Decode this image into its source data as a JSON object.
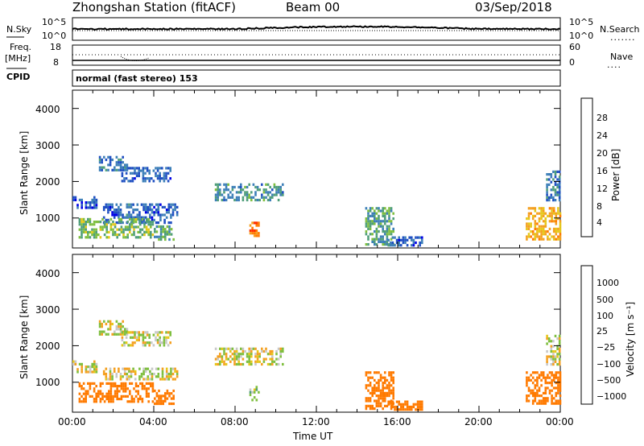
{
  "header": {
    "station": "Zhongshan Station (fitACF)",
    "beam": "Beam 00",
    "date": "03/Sep/2018"
  },
  "panels": {
    "nsky_label": "N.Sky",
    "nsky_ticks": [
      "10^5",
      "10^0"
    ],
    "nsearch_label": "N.Search",
    "nsearch_ticks": [
      "10^5",
      "10^0"
    ],
    "freq_label": "Freq.",
    "freq_unit": "[MHz]",
    "freq_ticks": [
      "18",
      "8"
    ],
    "nave_label": "Nave",
    "nave_ticks": [
      "60",
      "0"
    ],
    "cpid_label": "CPID",
    "cpid_text": "normal (fast stereo) 153"
  },
  "chart_data": [
    {
      "type": "heatmap",
      "name": "power",
      "ylabel": "Slant Range [km]",
      "yticks": [
        "4000",
        "3000",
        "2000",
        "1000"
      ],
      "ylim": [
        180,
        4500
      ],
      "xlim": [
        0,
        24
      ],
      "colorbar_label": "Power [dB]",
      "colorbar_ticks": [
        "28",
        "24",
        "20",
        "16",
        "12",
        "8",
        "4"
      ],
      "colorbar_colors": [
        "#0000e6",
        "#1f4fc2",
        "#3d7fb8",
        "#4f9e7a",
        "#7fbf3f",
        "#e6c81a",
        "#f4a020",
        "#ff7a00",
        "#ff3000",
        "#e00000"
      ],
      "patches": [
        {
          "t0": 1.3,
          "t1": 2.7,
          "r0": 2300,
          "r1": 2700,
          "v": 6
        },
        {
          "t0": 2.4,
          "t1": 4.8,
          "r0": 2000,
          "r1": 2400,
          "v": 5
        },
        {
          "t0": 0.0,
          "t1": 1.2,
          "r0": 1300,
          "r1": 1600,
          "v": 4
        },
        {
          "t0": 1.5,
          "t1": 5.2,
          "r0": 900,
          "r1": 1400,
          "v": 5
        },
        {
          "t0": 0.3,
          "t1": 4.0,
          "r0": 450,
          "r1": 1000,
          "v": 13
        },
        {
          "t0": 4.0,
          "t1": 5.0,
          "r0": 400,
          "r1": 800,
          "v": 11
        },
        {
          "t0": 7.0,
          "t1": 10.3,
          "r0": 1500,
          "r1": 1950,
          "v": 9
        },
        {
          "t0": 8.7,
          "t1": 9.2,
          "r0": 500,
          "r1": 900,
          "v": 24
        },
        {
          "t0": 14.4,
          "t1": 15.8,
          "r0": 300,
          "r1": 1300,
          "v": 11
        },
        {
          "t0": 15.5,
          "t1": 17.2,
          "r0": 250,
          "r1": 500,
          "v": 5
        },
        {
          "t0": 22.3,
          "t1": 24.0,
          "r0": 400,
          "r1": 1300,
          "v": 20
        },
        {
          "t0": 23.3,
          "t1": 24.0,
          "r0": 1500,
          "r1": 2300,
          "v": 7
        }
      ]
    },
    {
      "type": "heatmap",
      "name": "velocity",
      "ylabel": "Slant Range [km]",
      "yticks": [
        "4000",
        "3000",
        "2000",
        "1000"
      ],
      "ylim": [
        180,
        4500
      ],
      "xlim": [
        0,
        24
      ],
      "xticks": [
        "00:00",
        "04:00",
        "08:00",
        "12:00",
        "16:00",
        "20:00",
        "00:00"
      ],
      "xlabel": "Time UT",
      "colorbar_label": "Velocity [m s⁻¹]",
      "colorbar_ticks": [
        "1000",
        "500",
        "100",
        "25",
        "−25",
        "−100",
        "−500",
        "−1000"
      ],
      "colorbar_colors": [
        "#e00000",
        "#ff3000",
        "#ff7a00",
        "#f4a020",
        "#e6c81a",
        "#c8c8c8",
        "#c8c8c8",
        "#7fbf3f",
        "#4f9e7a",
        "#1f4fc2",
        "#0000e6"
      ],
      "patches": [
        {
          "t0": 1.3,
          "t1": 2.7,
          "r0": 2300,
          "r1": 2700,
          "v": 0
        },
        {
          "t0": 2.4,
          "t1": 4.8,
          "r0": 2000,
          "r1": 2400,
          "v": 0
        },
        {
          "t0": 0.0,
          "t1": 1.2,
          "r0": 1300,
          "r1": 1600,
          "v": 0
        },
        {
          "t0": 1.5,
          "t1": 5.2,
          "r0": 1100,
          "r1": 1400,
          "v": 0
        },
        {
          "t0": 0.3,
          "t1": 4.0,
          "r0": 450,
          "r1": 1000,
          "v": -300
        },
        {
          "t0": 4.0,
          "t1": 5.0,
          "r0": 400,
          "r1": 800,
          "v": -300
        },
        {
          "t0": 7.0,
          "t1": 10.3,
          "r0": 1500,
          "r1": 1950,
          "v": 0
        },
        {
          "t0": 8.7,
          "t1": 9.2,
          "r0": 500,
          "r1": 900,
          "v": 50
        },
        {
          "t0": 14.4,
          "t1": 15.8,
          "r0": 300,
          "r1": 1300,
          "v": -300
        },
        {
          "t0": 15.5,
          "t1": 17.2,
          "r0": 250,
          "r1": 500,
          "v": -300
        },
        {
          "t0": 22.3,
          "t1": 24.0,
          "r0": 400,
          "r1": 1300,
          "v": -300
        },
        {
          "t0": 23.3,
          "t1": 24.0,
          "r0": 1500,
          "r1": 2300,
          "v": 0
        }
      ]
    }
  ]
}
